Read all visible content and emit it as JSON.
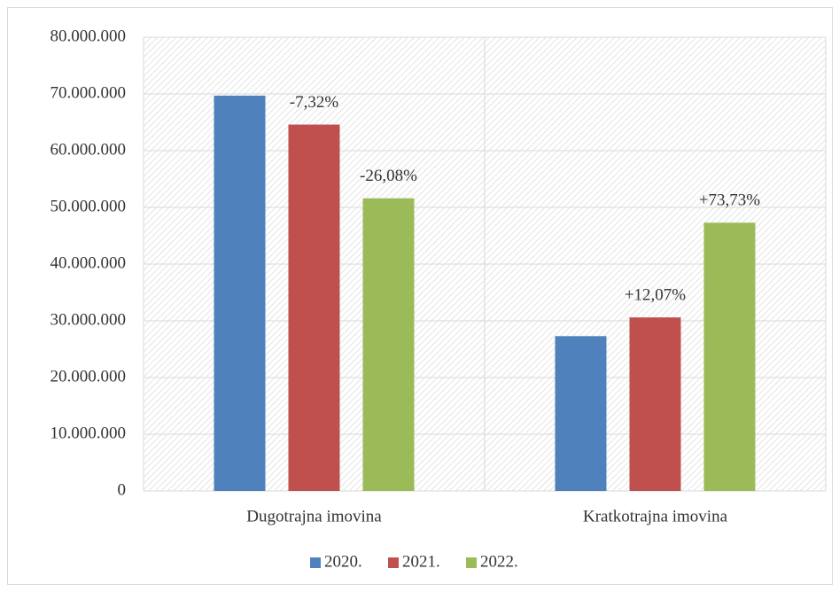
{
  "chart_data": {
    "type": "bar",
    "categories": [
      "Dugotrajna imovina",
      "Kratkotrajna imovina"
    ],
    "series": [
      {
        "name": "2020.",
        "color": "#4f81bd",
        "values": [
          69700000,
          27300000
        ]
      },
      {
        "name": "2021.",
        "color": "#c0504d",
        "values": [
          64600000,
          30600000
        ],
        "change_labels": [
          "-7,32%",
          "+12,07%"
        ]
      },
      {
        "name": "2022.",
        "color": "#9bbb59",
        "values": [
          51600000,
          47300000
        ],
        "change_labels": [
          "-26,08%",
          "+73,73%"
        ]
      }
    ],
    "ylim": [
      0,
      80000000
    ],
    "yticks": [
      0,
      {
        "value": 10000000,
        "label": "10.000.000"
      },
      {
        "value": 20000000,
        "label": "20.000.000"
      },
      {
        "value": 30000000,
        "label": "30.000.000"
      },
      {
        "value": 40000000,
        "label": "40.000.000"
      },
      {
        "value": 50000000,
        "label": "50.000.000"
      },
      {
        "value": 60000000,
        "label": "60.000.000"
      },
      {
        "value": 70000000,
        "label": "70.000.000"
      },
      {
        "value": 80000000,
        "label": "80.000.000"
      }
    ],
    "grid": true,
    "legend": "bottom"
  }
}
